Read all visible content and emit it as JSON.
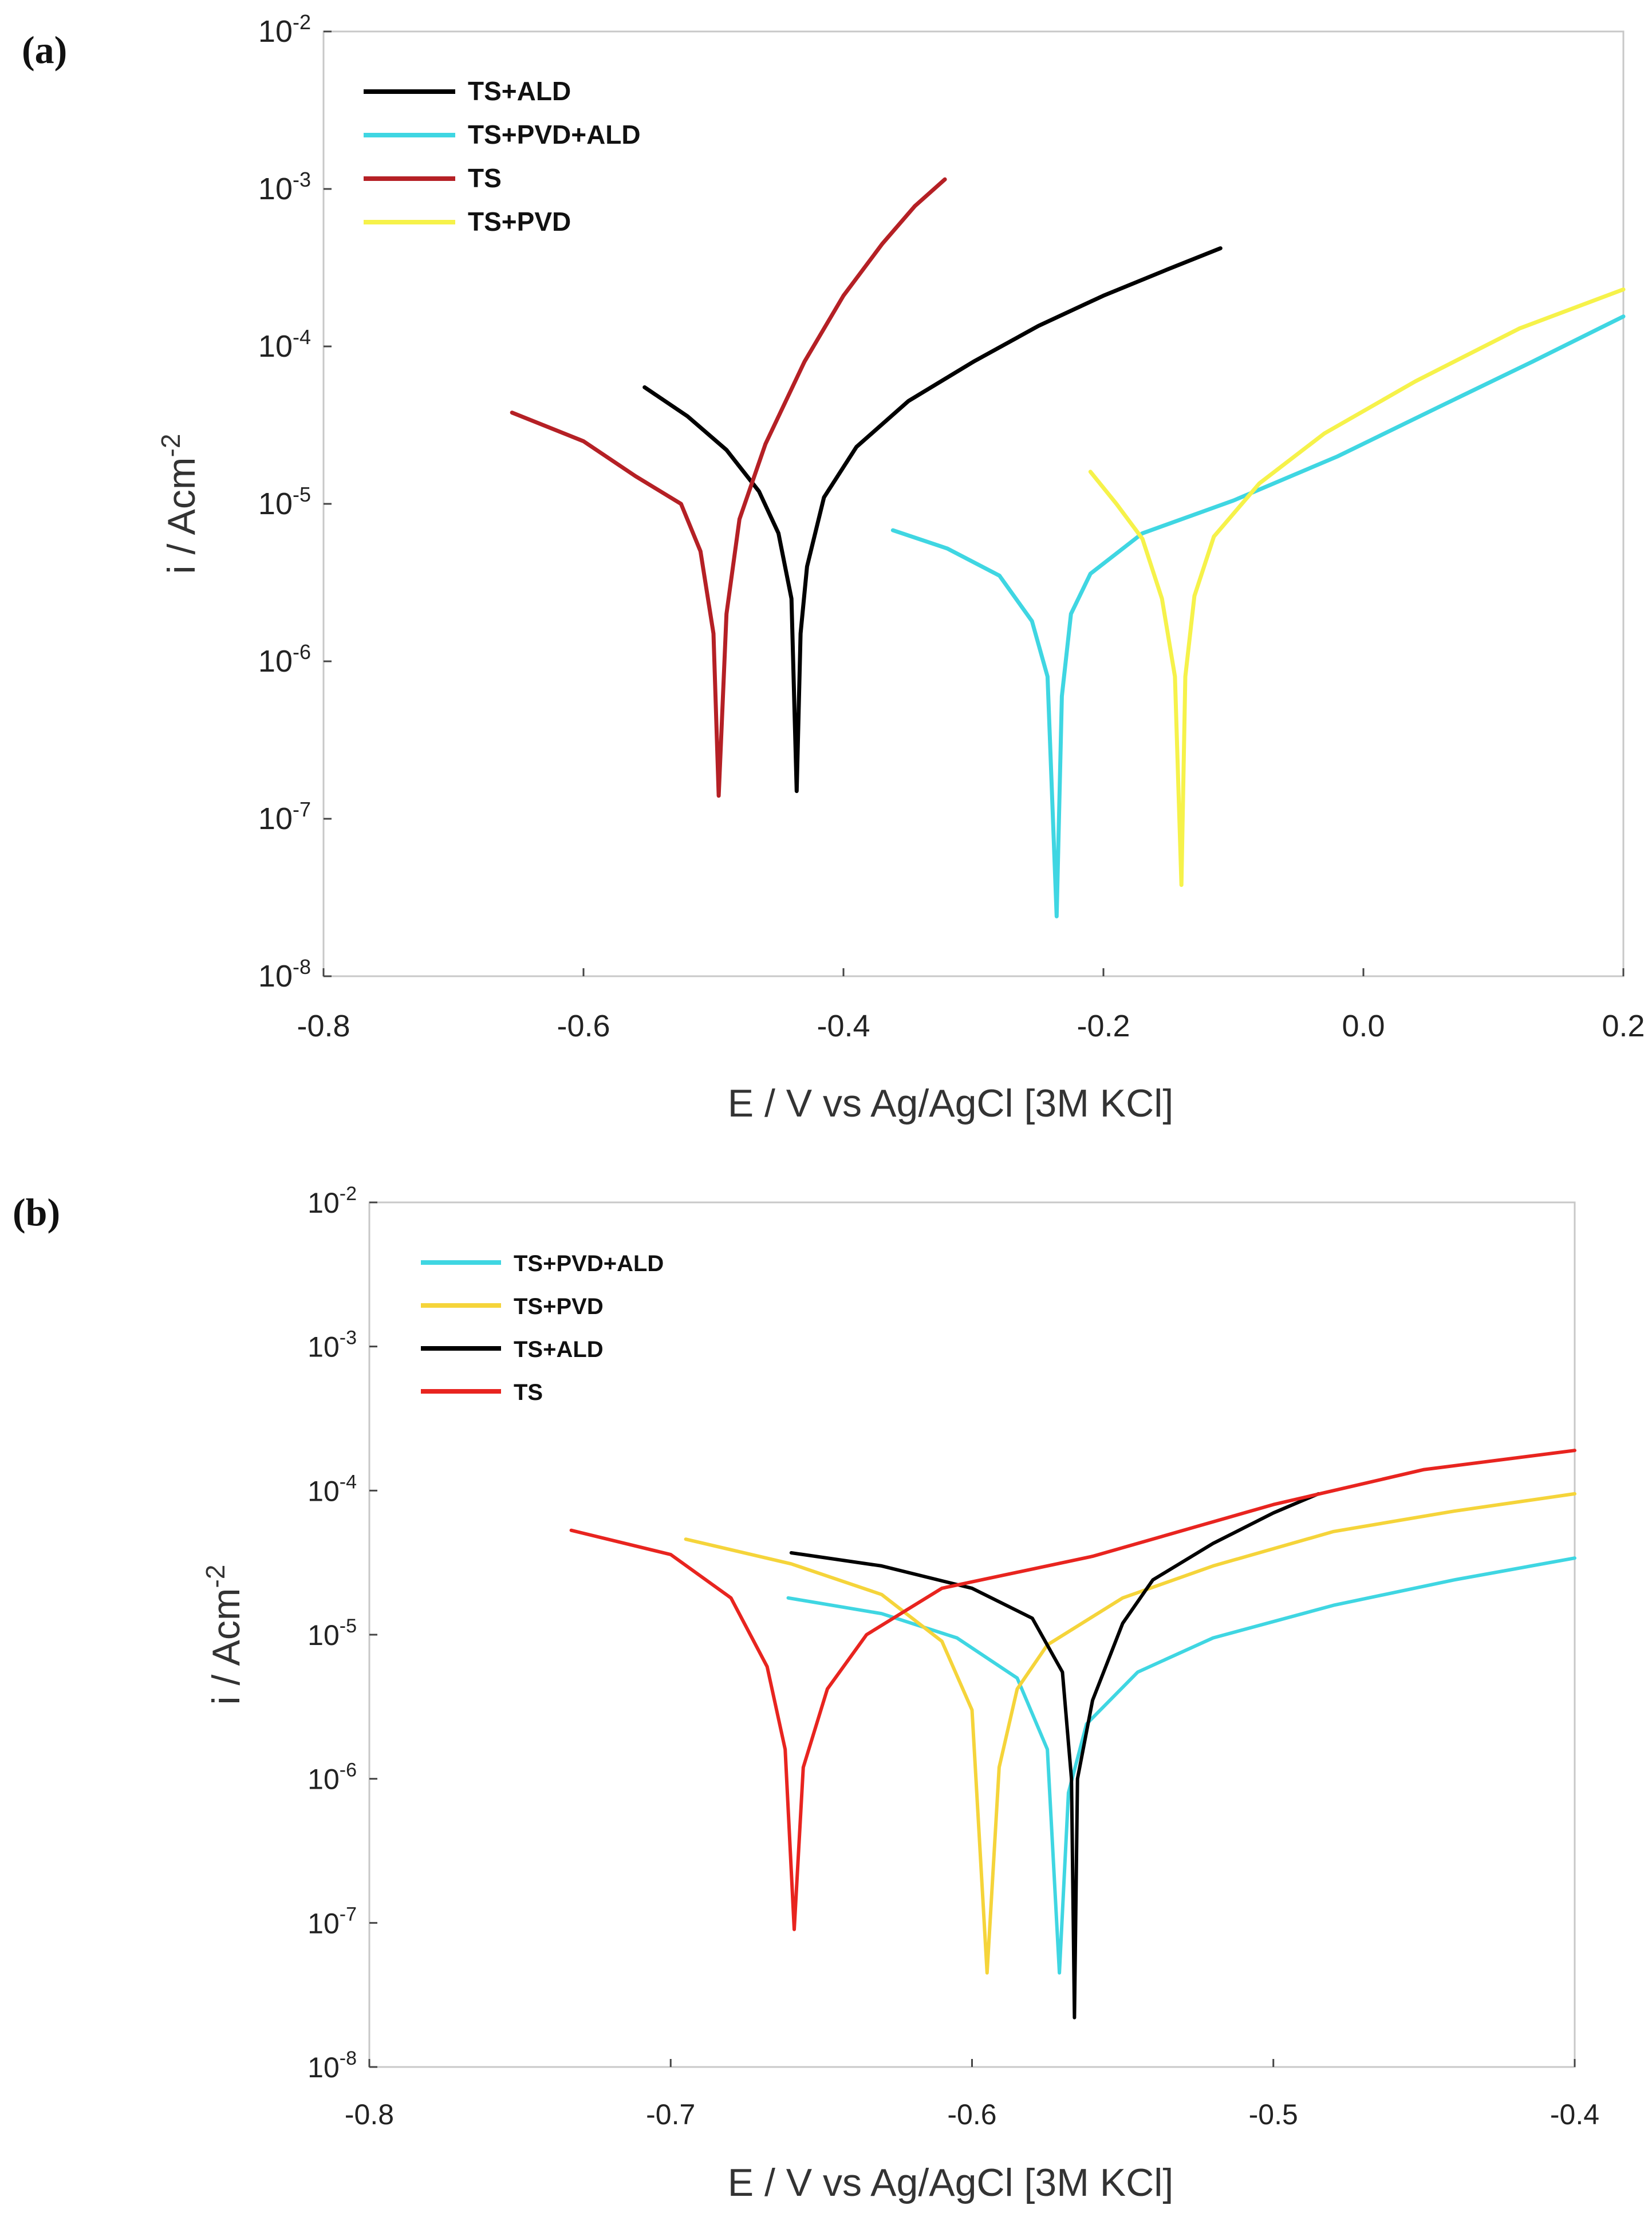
{
  "chart_data": [
    {
      "panel": "(a)",
      "type": "line",
      "title": "",
      "xlabel": "E / V vs Ag/AgCl [3M KCl]",
      "ylabel_base": "i / Acm",
      "ylabel_sup": "-2",
      "xlim": [
        -0.8,
        0.2
      ],
      "ylim_log10": [
        -8,
        -2
      ],
      "xticks": [
        "-0.8",
        "-0.6",
        "-0.4",
        "-0.2",
        "0.0",
        "0.2"
      ],
      "xtick_values": [
        -0.8,
        -0.6,
        -0.4,
        -0.2,
        0.0,
        0.2
      ],
      "ytick_exponents": [
        "-2",
        "-3",
        "-4",
        "-5",
        "-6",
        "-7",
        "-8"
      ],
      "ytick_base": "10",
      "legend_position": "top-left",
      "series": [
        {
          "name": "TS+ALD",
          "color": "#000000",
          "points": [
            [
              -0.553,
              5.5e-05
            ],
            [
              -0.52,
              3.6e-05
            ],
            [
              -0.49,
              2.2e-05
            ],
            [
              -0.465,
              1.2e-05
            ],
            [
              -0.45,
              6.5e-06
            ],
            [
              -0.44,
              2.5e-06
            ],
            [
              -0.436,
              1.5e-07
            ],
            [
              -0.433,
              1.5e-06
            ],
            [
              -0.428,
              4e-06
            ],
            [
              -0.415,
              1.1e-05
            ],
            [
              -0.39,
              2.3e-05
            ],
            [
              -0.35,
              4.5e-05
            ],
            [
              -0.3,
              8e-05
            ],
            [
              -0.25,
              0.000135
            ],
            [
              -0.2,
              0.00021
            ],
            [
              -0.15,
              0.00031
            ],
            [
              -0.11,
              0.00042
            ]
          ]
        },
        {
          "name": "TS+PVD+ALD",
          "color": "#3fd6e2",
          "points": [
            [
              -0.362,
              6.8e-06
            ],
            [
              -0.32,
              5.2e-06
            ],
            [
              -0.28,
              3.5e-06
            ],
            [
              -0.255,
              1.8e-06
            ],
            [
              -0.243,
              8e-07
            ],
            [
              -0.236,
              2.4e-08
            ],
            [
              -0.232,
              6e-07
            ],
            [
              -0.225,
              2e-06
            ],
            [
              -0.21,
              3.6e-06
            ],
            [
              -0.17,
              6.5e-06
            ],
            [
              -0.1,
              1.05e-05
            ],
            [
              -0.02,
              2e-05
            ],
            [
              0.06,
              4.2e-05
            ],
            [
              0.13,
              8e-05
            ],
            [
              0.2,
              0.000155
            ]
          ]
        },
        {
          "name": "TS",
          "color": "#b52025",
          "points": [
            [
              -0.655,
              3.8e-05
            ],
            [
              -0.6,
              2.5e-05
            ],
            [
              -0.56,
              1.5e-05
            ],
            [
              -0.525,
              1e-05
            ],
            [
              -0.51,
              5e-06
            ],
            [
              -0.5,
              1.5e-06
            ],
            [
              -0.496,
              1.4e-07
            ],
            [
              -0.49,
              2e-06
            ],
            [
              -0.48,
              8e-06
            ],
            [
              -0.46,
              2.4e-05
            ],
            [
              -0.43,
              8e-05
            ],
            [
              -0.4,
              0.00021
            ],
            [
              -0.37,
              0.00045
            ],
            [
              -0.345,
              0.00078
            ],
            [
              -0.322,
              0.00115
            ]
          ]
        },
        {
          "name": "TS+PVD",
          "color": "#f6f24a",
          "points": [
            [
              -0.21,
              1.6e-05
            ],
            [
              -0.19,
              1e-05
            ],
            [
              -0.17,
              6e-06
            ],
            [
              -0.155,
              2.5e-06
            ],
            [
              -0.145,
              8e-07
            ],
            [
              -0.14,
              3.8e-08
            ],
            [
              -0.137,
              8e-07
            ],
            [
              -0.13,
              2.6e-06
            ],
            [
              -0.115,
              6.2e-06
            ],
            [
              -0.08,
              1.35e-05
            ],
            [
              -0.03,
              2.8e-05
            ],
            [
              0.04,
              6e-05
            ],
            [
              0.12,
              0.00013
            ],
            [
              0.2,
              0.00023
            ]
          ]
        }
      ]
    },
    {
      "panel": "(b)",
      "type": "line",
      "title": "",
      "xlabel": "E / V vs Ag/AgCl [3M KCl]",
      "ylabel_base": "i / Acm",
      "ylabel_sup": "-2",
      "xlim": [
        -0.8,
        -0.4
      ],
      "ylim_log10": [
        -8,
        -2
      ],
      "xticks": [
        "-0.8",
        "-0.7",
        "-0.6",
        "-0.5",
        "-0.4"
      ],
      "xtick_values": [
        -0.8,
        -0.7,
        -0.6,
        -0.5,
        -0.4
      ],
      "ytick_exponents": [
        "-2",
        "-3",
        "-4",
        "-5",
        "-6",
        "-7",
        "-8"
      ],
      "ytick_base": "10",
      "legend_position": "top-left",
      "series": [
        {
          "name": "TS+PVD+ALD",
          "color": "#3fd6e2",
          "points": [
            [
              -0.661,
              1.8e-05
            ],
            [
              -0.63,
              1.4e-05
            ],
            [
              -0.605,
              9.5e-06
            ],
            [
              -0.585,
              5e-06
            ],
            [
              -0.575,
              1.6e-06
            ],
            [
              -0.571,
              4.5e-08
            ],
            [
              -0.568,
              8e-07
            ],
            [
              -0.562,
              2.4e-06
            ],
            [
              -0.545,
              5.5e-06
            ],
            [
              -0.52,
              9.5e-06
            ],
            [
              -0.48,
              1.6e-05
            ],
            [
              -0.44,
              2.4e-05
            ],
            [
              -0.4,
              3.4e-05
            ]
          ]
        },
        {
          "name": "TS+PVD",
          "color": "#f5d43a",
          "points": [
            [
              -0.695,
              4.6e-05
            ],
            [
              -0.66,
              3.1e-05
            ],
            [
              -0.63,
              1.9e-05
            ],
            [
              -0.61,
              9e-06
            ],
            [
              -0.6,
              3e-06
            ],
            [
              -0.595,
              4.5e-08
            ],
            [
              -0.591,
              1.2e-06
            ],
            [
              -0.585,
              4.2e-06
            ],
            [
              -0.575,
              8.5e-06
            ],
            [
              -0.55,
              1.8e-05
            ],
            [
              -0.52,
              3e-05
            ],
            [
              -0.48,
              5.2e-05
            ],
            [
              -0.44,
              7.2e-05
            ],
            [
              -0.4,
              9.5e-05
            ]
          ]
        },
        {
          "name": "TS+ALD",
          "color": "#000000",
          "points": [
            [
              -0.66,
              3.7e-05
            ],
            [
              -0.63,
              3e-05
            ],
            [
              -0.6,
              2.1e-05
            ],
            [
              -0.58,
              1.3e-05
            ],
            [
              -0.57,
              5.5e-06
            ],
            [
              -0.567,
              1e-06
            ],
            [
              -0.566,
              2.2e-08
            ],
            [
              -0.565,
              1e-06
            ],
            [
              -0.56,
              3.5e-06
            ],
            [
              -0.55,
              1.2e-05
            ],
            [
              -0.54,
              2.4e-05
            ],
            [
              -0.52,
              4.3e-05
            ],
            [
              -0.5,
              7e-05
            ],
            [
              -0.485,
              9.5e-05
            ]
          ]
        },
        {
          "name": "TS",
          "color": "#e8241f",
          "points": [
            [
              -0.733,
              5.3e-05
            ],
            [
              -0.7,
              3.6e-05
            ],
            [
              -0.68,
              1.8e-05
            ],
            [
              -0.668,
              6e-06
            ],
            [
              -0.662,
              1.6e-06
            ],
            [
              -0.659,
              9e-08
            ],
            [
              -0.656,
              1.2e-06
            ],
            [
              -0.648,
              4.2e-06
            ],
            [
              -0.635,
              1e-05
            ],
            [
              -0.61,
              2.1e-05
            ],
            [
              -0.56,
              3.5e-05
            ],
            [
              -0.5,
              8e-05
            ],
            [
              -0.45,
              0.00014
            ],
            [
              -0.4,
              0.00019
            ]
          ]
        }
      ]
    }
  ]
}
